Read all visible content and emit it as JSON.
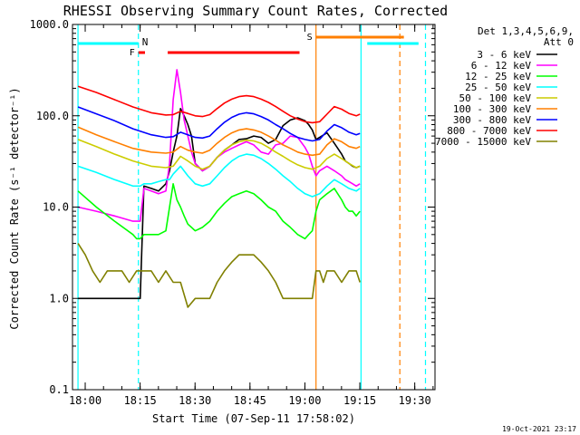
{
  "chart_data": {
    "type": "line",
    "title": "RHESSI Observing Summary Count Rates, Corrected",
    "xlabel": "Start Time (07-Sep-11 17:58:02)",
    "ylabel": "Corrected Count Rate (s⁻¹ detector⁻¹)",
    "y_scale": "log",
    "ylim": [
      0.1,
      1000
    ],
    "y_ticks": [
      {
        "value": 0.1,
        "label": "0.1"
      },
      {
        "value": 1,
        "label": "1.0"
      },
      {
        "value": 10,
        "label": "10.0"
      },
      {
        "value": 100,
        "label": "100.0"
      },
      {
        "value": 1000,
        "label": "1000.0"
      }
    ],
    "x_unit": "minutes after 17:58:02",
    "xlim": [
      -1.5,
      97.5
    ],
    "x_ticks": [
      {
        "value": 1.97,
        "label": "18:00"
      },
      {
        "value": 16.97,
        "label": "18:15"
      },
      {
        "value": 31.97,
        "label": "18:30"
      },
      {
        "value": 46.97,
        "label": "18:45"
      },
      {
        "value": 61.97,
        "label": "19:00"
      },
      {
        "value": 76.97,
        "label": "19:15"
      },
      {
        "value": 91.97,
        "label": "19:30"
      }
    ],
    "legend_header": [
      "Det 1,3,4,5,6,9,",
      "Att 0"
    ],
    "legend_position": "right",
    "series": [
      {
        "name": "3 - 6 keV",
        "color": "#000000",
        "x": [
          0,
          5,
          10,
          15,
          17,
          18,
          20,
          22,
          24,
          25,
          26,
          27,
          28,
          29,
          30,
          31,
          32,
          34,
          36,
          38,
          40,
          42,
          44,
          46,
          48,
          50,
          52,
          54,
          56,
          58,
          60,
          62,
          63,
          64,
          65,
          66,
          68,
          70,
          72,
          73,
          74,
          75,
          76,
          77
        ],
        "y": [
          1,
          1,
          1,
          1,
          1,
          17,
          16,
          15,
          18,
          25,
          40,
          60,
          120,
          100,
          80,
          60,
          30,
          25,
          28,
          35,
          42,
          48,
          55,
          56,
          60,
          58,
          50,
          55,
          78,
          90,
          95,
          88,
          80,
          70,
          55,
          58,
          65,
          50,
          38,
          32,
          30,
          28,
          27,
          28
        ]
      },
      {
        "name": "6 - 12 keV",
        "color": "#ff00ff",
        "x": [
          0,
          5,
          10,
          15,
          16,
          17,
          18,
          20,
          22,
          24,
          25,
          26,
          27,
          28,
          29,
          30,
          31,
          32,
          34,
          36,
          38,
          40,
          42,
          44,
          46,
          48,
          50,
          52,
          54,
          56,
          58,
          60,
          62,
          63,
          64,
          65,
          66,
          68,
          70,
          72,
          73,
          74,
          75,
          76,
          77
        ],
        "y": [
          10,
          9,
          8,
          7,
          7,
          7,
          16,
          15,
          14,
          15,
          30,
          150,
          320,
          180,
          90,
          60,
          40,
          30,
          25,
          28,
          35,
          40,
          44,
          48,
          52,
          48,
          40,
          38,
          48,
          50,
          60,
          58,
          45,
          38,
          28,
          22,
          25,
          28,
          25,
          22,
          20,
          19,
          18,
          17,
          18
        ]
      },
      {
        "name": "12 - 25 keV",
        "color": "#00ff00",
        "x": [
          0,
          5,
          10,
          15,
          16,
          17,
          18,
          20,
          22,
          24,
          25,
          26,
          27,
          28,
          29,
          30,
          31,
          32,
          34,
          36,
          38,
          40,
          42,
          44,
          46,
          48,
          50,
          52,
          54,
          56,
          58,
          60,
          62,
          63,
          64,
          65,
          66,
          68,
          70,
          72,
          73,
          74,
          75,
          76,
          77
        ],
        "y": [
          15,
          10,
          7,
          5,
          4.5,
          4.5,
          5,
          5,
          5,
          5.5,
          10,
          18,
          12,
          10,
          8,
          6.5,
          6,
          5.5,
          6,
          7,
          9,
          11,
          13,
          14,
          15,
          14,
          12,
          10,
          9,
          7,
          6,
          5,
          4.5,
          5,
          5.5,
          9,
          12,
          14,
          16,
          12,
          10,
          9,
          9,
          8,
          9
        ]
      },
      {
        "name": "25 - 50 keV",
        "color": "#00ffff",
        "x": [
          0,
          5,
          10,
          15,
          17,
          18,
          20,
          22,
          24,
          25,
          26,
          28,
          30,
          32,
          34,
          36,
          38,
          40,
          42,
          44,
          46,
          48,
          50,
          52,
          54,
          56,
          58,
          60,
          62,
          64,
          66,
          68,
          70,
          72,
          74,
          76,
          77
        ],
        "y": [
          28,
          24,
          20,
          17,
          17,
          18,
          18,
          19,
          20,
          20,
          23,
          28,
          22,
          18,
          17,
          18,
          22,
          27,
          32,
          36,
          38,
          37,
          34,
          30,
          26,
          22,
          19,
          16,
          14,
          13,
          14,
          17,
          20,
          18,
          16,
          15,
          16
        ]
      },
      {
        "name": "50 - 100 keV",
        "color": "#cccc00",
        "x": [
          0,
          5,
          10,
          15,
          20,
          24,
          26,
          28,
          30,
          32,
          34,
          36,
          38,
          40,
          42,
          44,
          46,
          48,
          50,
          52,
          54,
          56,
          58,
          60,
          62,
          64,
          66,
          68,
          70,
          72,
          74,
          76,
          77
        ],
        "y": [
          55,
          46,
          38,
          32,
          28,
          27,
          28,
          36,
          32,
          28,
          26,
          28,
          35,
          42,
          48,
          52,
          54,
          53,
          50,
          45,
          40,
          36,
          32,
          29,
          27,
          26,
          28,
          34,
          38,
          34,
          30,
          27,
          28
        ]
      },
      {
        "name": "100 - 300 keV",
        "color": "#ff7f00",
        "x": [
          0,
          5,
          10,
          15,
          20,
          24,
          26,
          28,
          30,
          32,
          34,
          36,
          38,
          40,
          42,
          44,
          46,
          48,
          50,
          52,
          54,
          56,
          58,
          60,
          62,
          64,
          66,
          68,
          70,
          72,
          74,
          76,
          77
        ],
        "y": [
          75,
          62,
          52,
          44,
          40,
          39,
          40,
          46,
          42,
          40,
          39,
          42,
          50,
          58,
          65,
          70,
          72,
          70,
          66,
          60,
          54,
          48,
          44,
          40,
          38,
          37,
          38,
          48,
          56,
          52,
          46,
          44,
          46
        ]
      },
      {
        "name": "300 - 800 keV",
        "color": "#0000ff",
        "x": [
          0,
          5,
          10,
          15,
          20,
          24,
          26,
          28,
          30,
          32,
          34,
          36,
          38,
          40,
          42,
          44,
          46,
          48,
          50,
          52,
          54,
          56,
          58,
          60,
          62,
          64,
          66,
          68,
          70,
          72,
          74,
          76,
          77
        ],
        "y": [
          125,
          105,
          88,
          72,
          62,
          58,
          59,
          66,
          62,
          58,
          57,
          60,
          72,
          85,
          96,
          104,
          108,
          105,
          98,
          90,
          80,
          72,
          64,
          58,
          55,
          53,
          55,
          68,
          80,
          74,
          66,
          62,
          64
        ]
      },
      {
        "name": "800 - 7000 keV",
        "color": "#ff0000",
        "x": [
          0,
          5,
          10,
          15,
          20,
          24,
          26,
          28,
          30,
          32,
          34,
          36,
          38,
          40,
          42,
          44,
          46,
          48,
          50,
          52,
          54,
          56,
          58,
          60,
          62,
          64,
          66,
          68,
          70,
          72,
          74,
          76,
          77
        ],
        "y": [
          210,
          180,
          150,
          125,
          108,
          102,
          103,
          112,
          106,
          100,
          98,
          103,
          120,
          138,
          152,
          162,
          166,
          162,
          152,
          140,
          126,
          112,
          100,
          92,
          86,
          84,
          86,
          104,
          126,
          118,
          106,
          100,
          104
        ]
      },
      {
        "name": "7000 - 15000 keV",
        "color": "#808000",
        "x": [
          0,
          2,
          4,
          6,
          8,
          10,
          12,
          14,
          16,
          17,
          18,
          20,
          22,
          24,
          26,
          28,
          29,
          30,
          32,
          34,
          36,
          38,
          40,
          42,
          44,
          46,
          48,
          50,
          52,
          54,
          56,
          58,
          60,
          62,
          64,
          65,
          66,
          67,
          68,
          70,
          72,
          74,
          76,
          77
        ],
        "y": [
          4,
          3,
          2,
          1.5,
          2,
          2,
          2,
          1.5,
          2,
          2,
          2,
          2,
          1.5,
          2,
          1.5,
          1.5,
          1.1,
          0.8,
          1,
          1,
          1,
          1.5,
          2,
          2.5,
          3,
          3,
          3,
          2.5,
          2,
          1.5,
          1,
          1,
          1,
          1,
          1,
          2,
          2,
          1.5,
          2,
          2,
          1.5,
          2,
          2,
          1.5
        ]
      }
    ],
    "attenuator_state_segments": [
      {
        "state": "N",
        "color": "#00ffff",
        "x_start": 0,
        "x_end": 16.5
      },
      {
        "state": "N",
        "color": "#00ffff",
        "x_start": 79,
        "x_end": 93
      }
    ],
    "flag_segments": [
      {
        "label": "F",
        "color": "#ff0000",
        "x_start": 16.5,
        "x_end": 18.3
      },
      {
        "label": "",
        "color": "#ff0000",
        "x_start": 24.5,
        "x_end": 60.5
      },
      {
        "label": "S",
        "color": "#ff7f00",
        "x_start": 65,
        "x_end": 89
      }
    ],
    "vertical_markers": [
      {
        "x": 0,
        "color": "#00ffff",
        "style": "solid"
      },
      {
        "x": 16.5,
        "color": "#00ffff",
        "style": "dashed"
      },
      {
        "x": 65,
        "color": "#ff7f00",
        "style": "solid"
      },
      {
        "x": 77.3,
        "color": "#00ffff",
        "style": "solid"
      },
      {
        "x": 87.9,
        "color": "#ff7f00",
        "style": "dashed"
      },
      {
        "x": 94.9,
        "color": "#00ffff",
        "style": "dashed"
      }
    ],
    "timestamp": "19-Oct-2021 23:17"
  }
}
